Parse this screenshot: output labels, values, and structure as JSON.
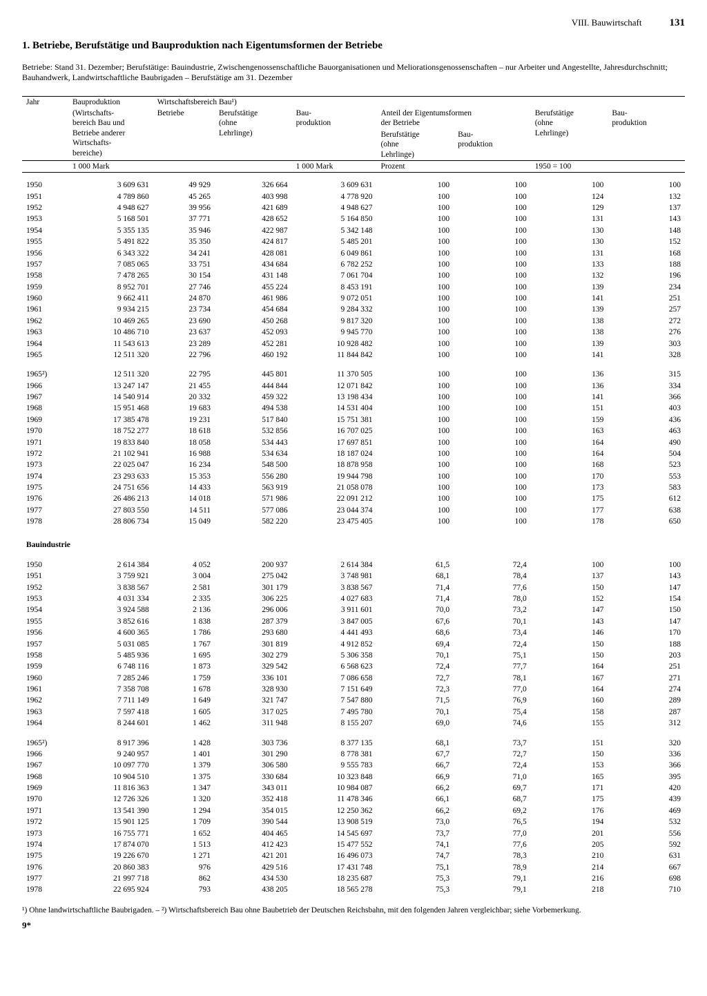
{
  "page": {
    "section": "VIII. Bauwirtschaft",
    "number": "131",
    "title": "1. Betriebe, Berufstätige und Bauproduktion nach Eigentumsformen der Betriebe",
    "preamble": "Betriebe: Stand 31. Dezember; Berufstätige: Bauindustrie, Zwischengenossenschaftliche Bauorganisationen und Meliorationsgenossenschaften – nur Arbeiter und Angestellte, Jahresdurchschnitt; Bauhandwerk, Landwirtschaftliche Baubrigaden – Berufstätige am 31. Dezember",
    "footnotes": "¹) Ohne landwirtschaftliche Baubrigaden. – ²) Wirtschaftsbereich Bau ohne Baubetrieb der Deutschen Reichsbahn, mit den folgenden Jahren vergleichbar; siehe Vorbemerkung.",
    "signature": "9*"
  },
  "headers": {
    "c0": "Jahr",
    "c1_a": "Bauproduktion",
    "c1_b": "(Wirtschafts-\nbereich Bau und\nBetriebe anderer\nWirtschafts-\nbereiche)",
    "grp": "Wirtschaftsbereich Bau¹)",
    "c2": "Betriebe",
    "c3": "Berufstätige\n(ohne\nLehrlinge)",
    "c4": "Bau-\nproduktion",
    "share": "Anteil der Eigentumsformen\nder Betriebe",
    "c5": "Berufstätige\n(ohne\nLehrlinge)",
    "c6": "Bau-\nproduktion",
    "c7": "Berufstätige\n(ohne\nLehrlinge)",
    "c8": "Bau-\nproduktion",
    "u1": "1 000 Mark",
    "u4": "1 000 Mark",
    "u5": "Prozent",
    "u7": "1950 = 100"
  },
  "section2_label": "Bauindustrie",
  "block1": [
    [
      "1950",
      "3 609 631",
      "49 929",
      "326 664",
      "3 609 631",
      "100",
      "100",
      "100",
      "100"
    ],
    [
      "1951",
      "4 789 860",
      "45 265",
      "403 998",
      "4 778 920",
      "100",
      "100",
      "124",
      "132"
    ],
    [
      "1952",
      "4 948 627",
      "39 956",
      "421 689",
      "4 948 627",
      "100",
      "100",
      "129",
      "137"
    ],
    [
      "1953",
      "5 168 501",
      "37 771",
      "428 652",
      "5 164 850",
      "100",
      "100",
      "131",
      "143"
    ],
    [
      "1954",
      "5 355 135",
      "35 946",
      "422 987",
      "5 342 148",
      "100",
      "100",
      "130",
      "148"
    ],
    [
      "1955",
      "5 491 822",
      "35 350",
      "424 817",
      "5 485 201",
      "100",
      "100",
      "130",
      "152"
    ],
    [
      "1956",
      "6 343 322",
      "34 241",
      "428 081",
      "6 049 861",
      "100",
      "100",
      "131",
      "168"
    ],
    [
      "1957",
      "7 085 065",
      "33 751",
      "434 684",
      "6 782 252",
      "100",
      "100",
      "133",
      "188"
    ],
    [
      "1958",
      "7 478 265",
      "30 154",
      "431 148",
      "7 061 704",
      "100",
      "100",
      "132",
      "196"
    ],
    [
      "1959",
      "8 952 701",
      "27 746",
      "455 224",
      "8 453 191",
      "100",
      "100",
      "139",
      "234"
    ],
    [
      "1960",
      "9 662 411",
      "24 870",
      "461 986",
      "9 072 051",
      "100",
      "100",
      "141",
      "251"
    ],
    [
      "1961",
      "9 934 215",
      "23 734",
      "454 684",
      "9 284 332",
      "100",
      "100",
      "139",
      "257"
    ],
    [
      "1962",
      "10 469 265",
      "23 690",
      "450 268",
      "9 817 320",
      "100",
      "100",
      "138",
      "272"
    ],
    [
      "1963",
      "10 486 710",
      "23 637",
      "452 093",
      "9 945 770",
      "100",
      "100",
      "138",
      "276"
    ],
    [
      "1964",
      "11 543 613",
      "23 289",
      "452 281",
      "10 928 482",
      "100",
      "100",
      "139",
      "303"
    ],
    [
      "1965",
      "12 511 320",
      "22 796",
      "460 192",
      "11 844 842",
      "100",
      "100",
      "141",
      "328"
    ]
  ],
  "block2": [
    [
      "1965²)",
      "12 511 320",
      "22 795",
      "445 801",
      "11 370 505",
      "100",
      "100",
      "136",
      "315"
    ],
    [
      "1966",
      "13 247 147",
      "21 455",
      "444 844",
      "12 071 842",
      "100",
      "100",
      "136",
      "334"
    ],
    [
      "1967",
      "14 540 914",
      "20 332",
      "459 322",
      "13 198 434",
      "100",
      "100",
      "141",
      "366"
    ],
    [
      "1968",
      "15 951 468",
      "19 683",
      "494 538",
      "14 531 404",
      "100",
      "100",
      "151",
      "403"
    ],
    [
      "1969",
      "17 385 478",
      "19 231",
      "517 840",
      "15 751 381",
      "100",
      "100",
      "159",
      "436"
    ],
    [
      "1970",
      "18 752 277",
      "18 618",
      "532 856",
      "16 707 025",
      "100",
      "100",
      "163",
      "463"
    ],
    [
      "1971",
      "19 833 840",
      "18 058",
      "534 443",
      "17 697 851",
      "100",
      "100",
      "164",
      "490"
    ],
    [
      "1972",
      "21 102 941",
      "16 988",
      "534 634",
      "18 187 024",
      "100",
      "100",
      "164",
      "504"
    ],
    [
      "1973",
      "22 025 047",
      "16 234",
      "548 500",
      "18 878 958",
      "100",
      "100",
      "168",
      "523"
    ],
    [
      "1974",
      "23 293 633",
      "15 353",
      "556 280",
      "19 944 798",
      "100",
      "100",
      "170",
      "553"
    ],
    [
      "1975",
      "24 751 656",
      "14 433",
      "563 919",
      "21 058 078",
      "100",
      "100",
      "173",
      "583"
    ],
    [
      "1976",
      "26 486 213",
      "14 018",
      "571 986",
      "22 091 212",
      "100",
      "100",
      "175",
      "612"
    ],
    [
      "1977",
      "27 803 550",
      "14 511",
      "577 086",
      "23 044 374",
      "100",
      "100",
      "177",
      "638"
    ],
    [
      "1978",
      "28 806 734",
      "15 049",
      "582 220",
      "23 475 405",
      "100",
      "100",
      "178",
      "650"
    ]
  ],
  "block3": [
    [
      "1950",
      "2 614 384",
      "4 052",
      "200 937",
      "2 614 384",
      "61,5",
      "72,4",
      "100",
      "100"
    ],
    [
      "1951",
      "3 759 921",
      "3 004",
      "275 042",
      "3 748 981",
      "68,1",
      "78,4",
      "137",
      "143"
    ],
    [
      "1952",
      "3 838 567",
      "2 581",
      "301 179",
      "3 838 567",
      "71,4",
      "77,6",
      "150",
      "147"
    ],
    [
      "1953",
      "4 031 334",
      "2 335",
      "306 225",
      "4 027 683",
      "71,4",
      "78,0",
      "152",
      "154"
    ],
    [
      "1954",
      "3 924 588",
      "2 136",
      "296 006",
      "3 911 601",
      "70,0",
      "73,2",
      "147",
      "150"
    ],
    [
      "1955",
      "3 852 616",
      "1 838",
      "287 379",
      "3 847 005",
      "67,6",
      "70,1",
      "143",
      "147"
    ],
    [
      "1956",
      "4 600 365",
      "1 786",
      "293 680",
      "4 441 493",
      "68,6",
      "73,4",
      "146",
      "170"
    ],
    [
      "1957",
      "5 031 085",
      "1 767",
      "301 819",
      "4 912 852",
      "69,4",
      "72,4",
      "150",
      "188"
    ],
    [
      "1958",
      "5 485 936",
      "1 695",
      "302 279",
      "5 306 358",
      "70,1",
      "75,1",
      "150",
      "203"
    ],
    [
      "1959",
      "6 748 116",
      "1 873",
      "329 542",
      "6 568 623",
      "72,4",
      "77,7",
      "164",
      "251"
    ],
    [
      "1960",
      "7 285 246",
      "1 759",
      "336 101",
      "7 086 658",
      "72,7",
      "78,1",
      "167",
      "271"
    ],
    [
      "1961",
      "7 358 708",
      "1 678",
      "328 930",
      "7 151 649",
      "72,3",
      "77,0",
      "164",
      "274"
    ],
    [
      "1962",
      "7 711 149",
      "1 649",
      "321 747",
      "7 547 880",
      "71,5",
      "76,9",
      "160",
      "289"
    ],
    [
      "1963",
      "7 597 418",
      "1 605",
      "317 025",
      "7 495 780",
      "70,1",
      "75,4",
      "158",
      "287"
    ],
    [
      "1964",
      "8 244 601",
      "1 462",
      "311 948",
      "8 155 207",
      "69,0",
      "74,6",
      "155",
      "312"
    ]
  ],
  "block4": [
    [
      "1965²)",
      "8 917 396",
      "1 428",
      "303 736",
      "8 377 135",
      "68,1",
      "73,7",
      "151",
      "320"
    ],
    [
      "1966",
      "9 240 957",
      "1 401",
      "301 290",
      "8 778 381",
      "67,7",
      "72,7",
      "150",
      "336"
    ],
    [
      "1967",
      "10 097 770",
      "1 379",
      "306 580",
      "9 555 783",
      "66,7",
      "72,4",
      "153",
      "366"
    ],
    [
      "1968",
      "10 904 510",
      "1 375",
      "330 684",
      "10 323 848",
      "66,9",
      "71,0",
      "165",
      "395"
    ],
    [
      "1969",
      "11 816 363",
      "1 347",
      "343 011",
      "10 984 087",
      "66,2",
      "69,7",
      "171",
      "420"
    ],
    [
      "1970",
      "12 726 326",
      "1 320",
      "352 418",
      "11 478 346",
      "66,1",
      "68,7",
      "175",
      "439"
    ],
    [
      "1971",
      "13 541 390",
      "1 294",
      "354 015",
      "12 250 362",
      "66,2",
      "69,2",
      "176",
      "469"
    ],
    [
      "1972",
      "15 901 125",
      "1 709",
      "390 544",
      "13 908 519",
      "73,0",
      "76,5",
      "194",
      "532"
    ],
    [
      "1973",
      "16 755 771",
      "1 652",
      "404 465",
      "14 545 697",
      "73,7",
      "77,0",
      "201",
      "556"
    ],
    [
      "1974",
      "17 874 070",
      "1 513",
      "412 423",
      "15 477 552",
      "74,1",
      "77,6",
      "205",
      "592"
    ],
    [
      "1975",
      "19 226 670",
      "1 271",
      "421 201",
      "16 496 073",
      "74,7",
      "78,3",
      "210",
      "631"
    ],
    [
      "1976",
      "20 860 383",
      "976",
      "429 516",
      "17 431 748",
      "75,1",
      "78,9",
      "214",
      "667"
    ],
    [
      "1977",
      "21 997 718",
      "862",
      "434 530",
      "18 235 687",
      "75,3",
      "79,1",
      "216",
      "698"
    ],
    [
      "1978",
      "22 695 924",
      "793",
      "438 205",
      "18 565 278",
      "75,3",
      "79,1",
      "218",
      "710"
    ]
  ]
}
